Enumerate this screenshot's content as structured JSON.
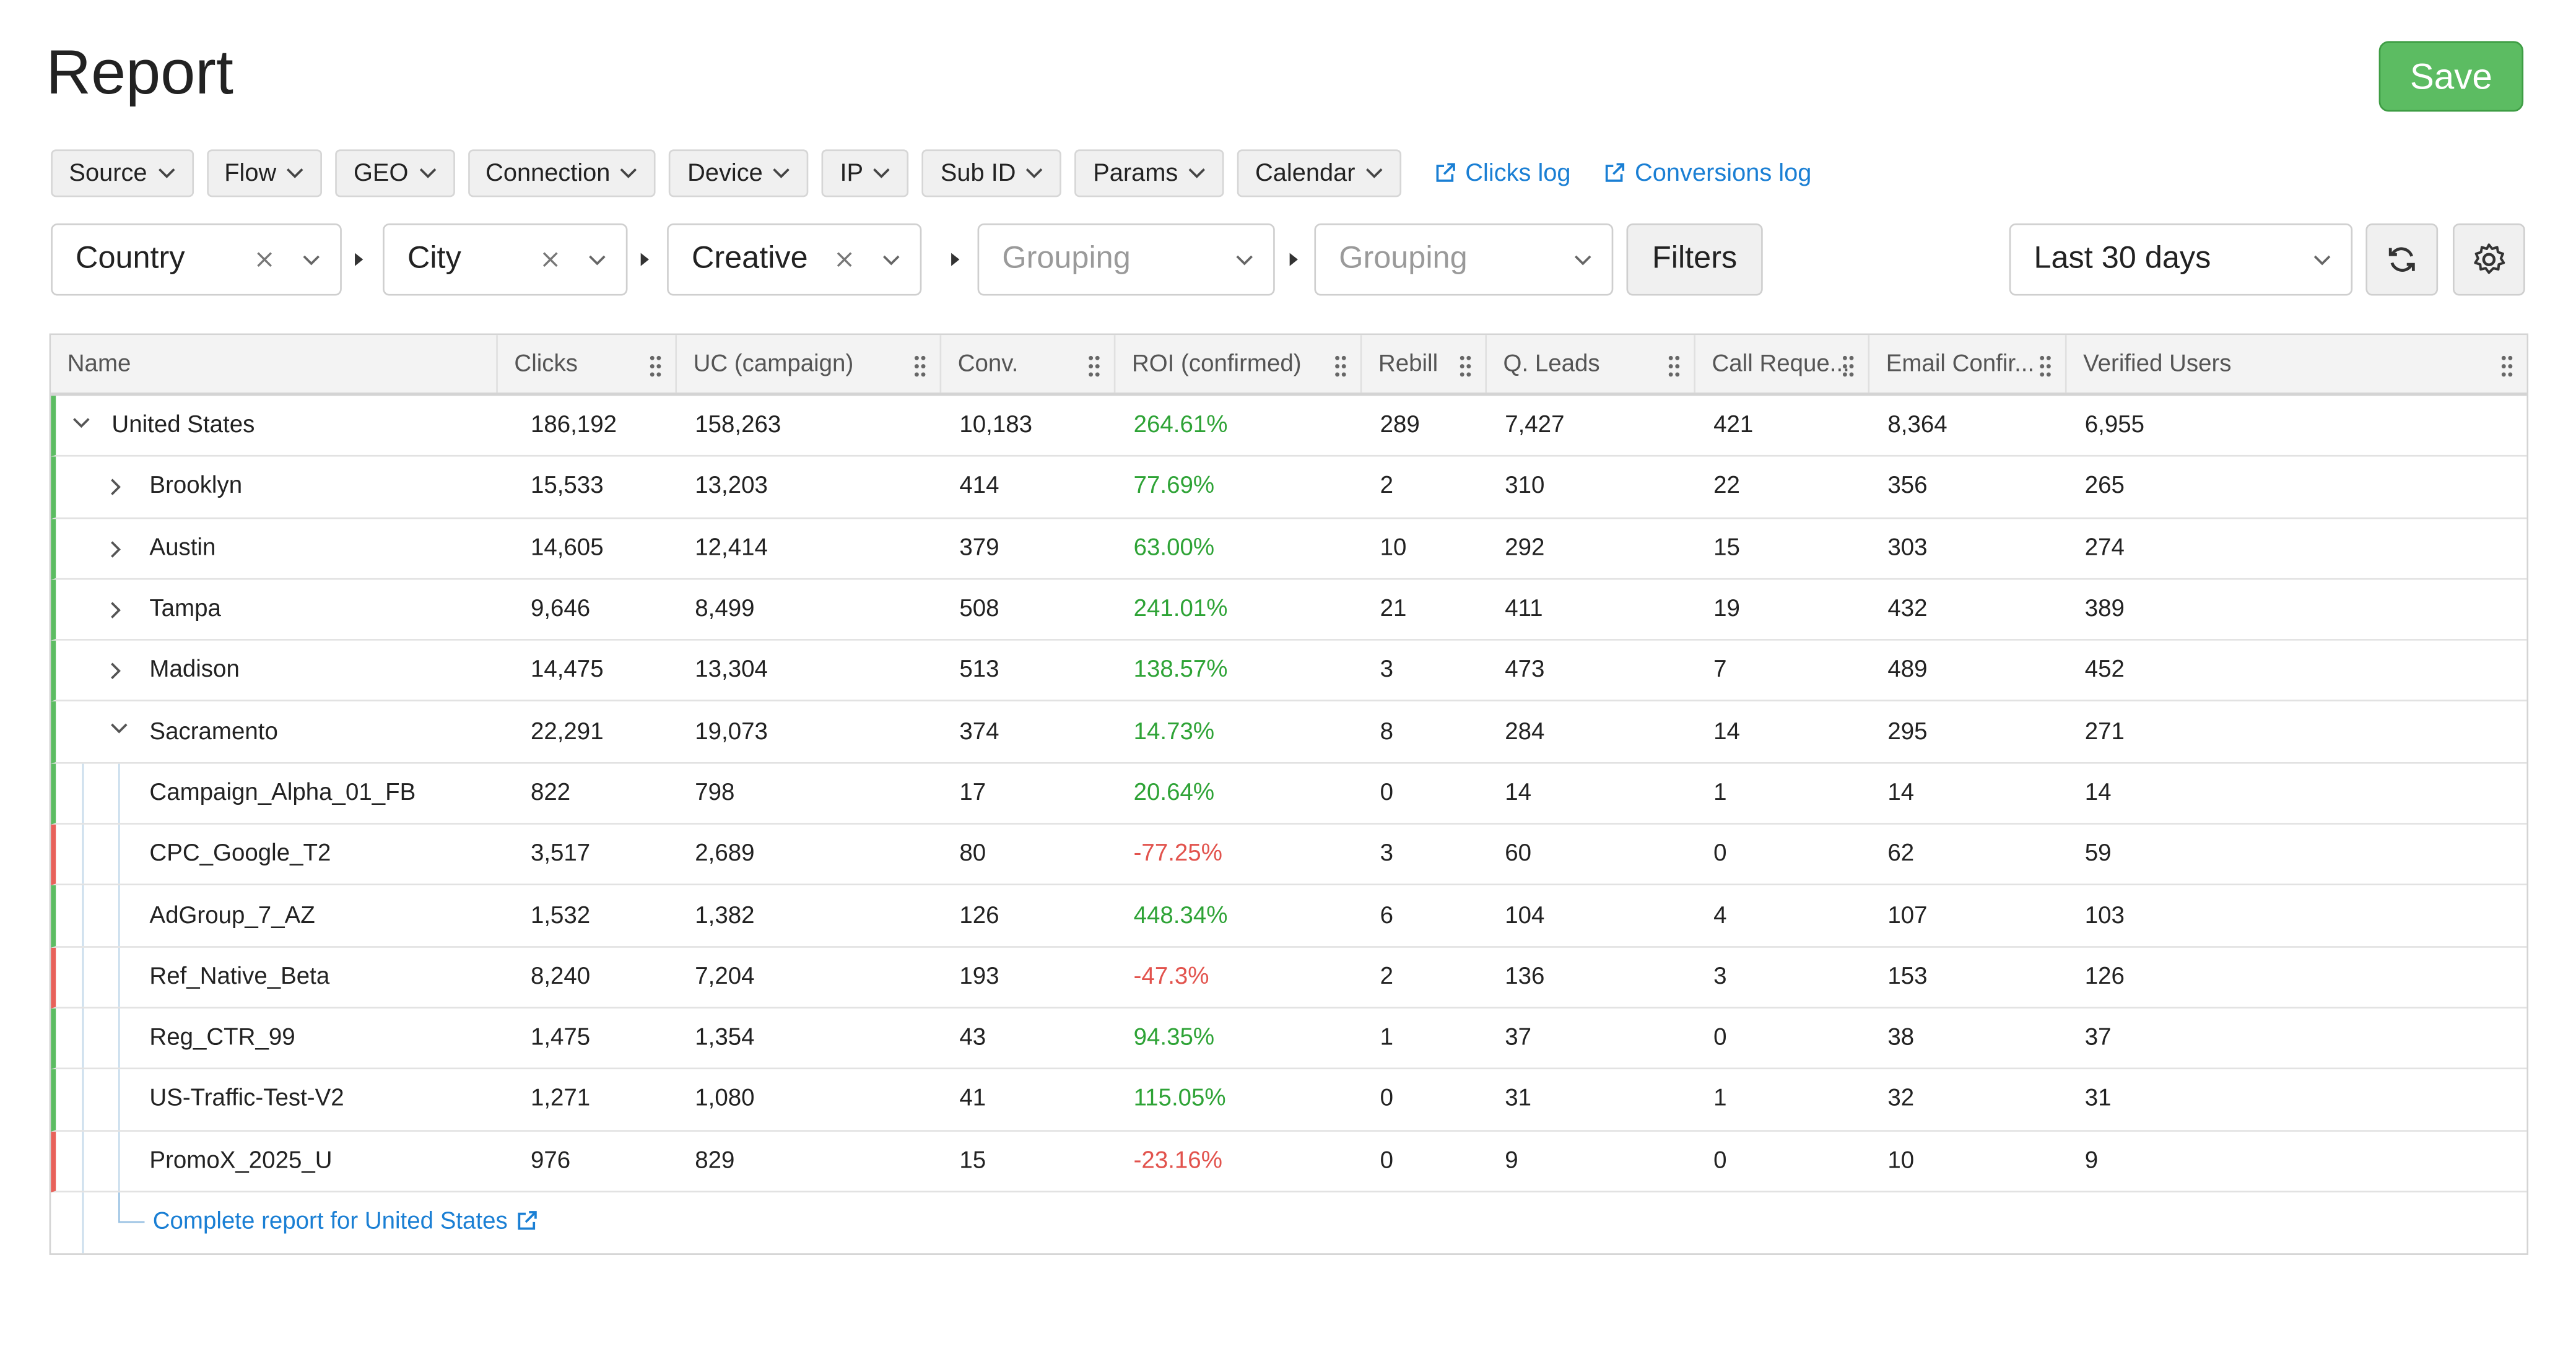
{
  "header": {
    "title": "Report",
    "save": "Save"
  },
  "toolbar": {
    "filters": [
      "Source",
      "Flow",
      "GEO",
      "Connection",
      "Device",
      "IP",
      "Sub ID",
      "Params",
      "Calendar"
    ],
    "links": [
      "Clicks log",
      "Conversions log"
    ]
  },
  "grouping": {
    "levels": [
      {
        "value": "Country"
      },
      {
        "value": "City"
      },
      {
        "value": "Creative"
      },
      {
        "placeholder": "Grouping"
      },
      {
        "placeholder": "Grouping"
      }
    ],
    "filters": "Filters",
    "date_range": "Last 30 days"
  },
  "table": {
    "columns": [
      "Name",
      "Clicks",
      "UC (campaign)",
      "Conv.",
      "ROI (confirmed)",
      "Rebill",
      "Q. Leads",
      "Call Reque...",
      "Email Confir...",
      "Verified Users"
    ],
    "rows": [
      {
        "name": "United States",
        "level": 0,
        "expanded": true,
        "status": "positive",
        "cells": [
          "186,192",
          "158,263",
          "10,183",
          "264.61%",
          "289",
          "7,427",
          "421",
          "8,364",
          "6,955"
        ]
      },
      {
        "name": "Brooklyn",
        "level": 1,
        "expanded": false,
        "status": "positive",
        "cells": [
          "15,533",
          "13,203",
          "414",
          "77.69%",
          "2",
          "310",
          "22",
          "356",
          "265"
        ]
      },
      {
        "name": "Austin",
        "level": 1,
        "expanded": false,
        "status": "positive",
        "cells": [
          "14,605",
          "12,414",
          "379",
          "63.00%",
          "10",
          "292",
          "15",
          "303",
          "274"
        ]
      },
      {
        "name": "Tampa",
        "level": 1,
        "expanded": false,
        "status": "positive",
        "cells": [
          "9,646",
          "8,499",
          "508",
          "241.01%",
          "21",
          "411",
          "19",
          "432",
          "389"
        ]
      },
      {
        "name": "Madison",
        "level": 1,
        "expanded": false,
        "status": "positive",
        "cells": [
          "14,475",
          "13,304",
          "513",
          "138.57%",
          "3",
          "473",
          "7",
          "489",
          "452"
        ]
      },
      {
        "name": "Sacramento",
        "level": 1,
        "expanded": true,
        "status": "positive",
        "cells": [
          "22,291",
          "19,073",
          "374",
          "14.73%",
          "8",
          "284",
          "14",
          "295",
          "271"
        ]
      },
      {
        "name": "Campaign_Alpha_01_FB",
        "level": 2,
        "status": "positive",
        "cells": [
          "822",
          "798",
          "17",
          "20.64%",
          "0",
          "14",
          "1",
          "14",
          "14"
        ]
      },
      {
        "name": "CPC_Google_T2",
        "level": 2,
        "status": "negative",
        "cells": [
          "3,517",
          "2,689",
          "80",
          "-77.25%",
          "3",
          "60",
          "0",
          "62",
          "59"
        ]
      },
      {
        "name": "AdGroup_7_AZ",
        "level": 2,
        "status": "positive",
        "cells": [
          "1,532",
          "1,382",
          "126",
          "448.34%",
          "6",
          "104",
          "4",
          "107",
          "103"
        ]
      },
      {
        "name": "Ref_Native_Beta",
        "level": 2,
        "status": "negative",
        "cells": [
          "8,240",
          "7,204",
          "193",
          "-47.3%",
          "2",
          "136",
          "3",
          "153",
          "126"
        ]
      },
      {
        "name": "Reg_CTR_99",
        "level": 2,
        "status": "positive",
        "cells": [
          "1,475",
          "1,354",
          "43",
          "94.35%",
          "1",
          "37",
          "0",
          "38",
          "37"
        ]
      },
      {
        "name": "US-Traffic-Test-V2",
        "level": 2,
        "status": "positive",
        "cells": [
          "1,271",
          "1,080",
          "41",
          "115.05%",
          "0",
          "31",
          "1",
          "32",
          "31"
        ]
      },
      {
        "name": "PromoX_2025_U",
        "level": 2,
        "status": "negative",
        "cells": [
          "976",
          "829",
          "15",
          "-23.16%",
          "0",
          "9",
          "0",
          "10",
          "9"
        ]
      }
    ],
    "footer_link": "Complete report for United States"
  }
}
